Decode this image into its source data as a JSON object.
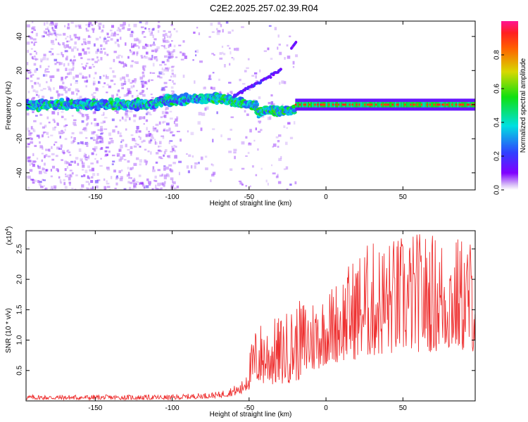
{
  "title": "C2E2.2025.257.02.39.R04",
  "chart_data": [
    {
      "type": "heatmap",
      "name": "spectrogram",
      "xlabel": "Height of straight line (km)",
      "ylabel": "Frequency (Hz)",
      "xlim": [
        -195,
        97
      ],
      "ylim": [
        -50,
        49
      ],
      "xticks": [
        -150,
        -100,
        -50,
        0,
        50
      ],
      "yticks": [
        -40,
        -20,
        0,
        20,
        40
      ],
      "colorbar": {
        "label": "Normalized spectral amplitude",
        "range": [
          0,
          1
        ],
        "ticks": [
          "0.0",
          "0.2",
          "0.4",
          "0.6",
          "0.8"
        ]
      },
      "colors": {
        "low": "#8000ff",
        "mid": "#00e0e0",
        "high": "#ff2020"
      },
      "bands": [
        {
          "x": [
            -195,
            -20
          ],
          "center_hz": [
            0,
            0,
            1,
            5,
            8,
            -5,
            -2
          ],
          "note": "noisy broadband"
        },
        {
          "x": [
            -20,
            97
          ],
          "center_hz": 0,
          "note": "steady carrier near 0 Hz"
        }
      ],
      "features": [
        {
          "name": "rising arc",
          "x": [
            -60,
            -30
          ],
          "hz": [
            5,
            20
          ]
        },
        {
          "name": "isolated streak",
          "x": [
            -22,
            -19
          ],
          "hz": [
            33,
            38
          ]
        }
      ]
    },
    {
      "type": "line",
      "name": "snr",
      "xlabel": "Height of straight line (km)",
      "ylabel": "SNR (10 * v/v)",
      "multiplier": "(x10",
      "multiplier_exp": "4",
      "xlim": [
        -195,
        97
      ],
      "ylim": [
        0,
        2.8
      ],
      "xticks": [
        -150,
        -100,
        -50,
        0,
        50
      ],
      "yticks": [
        "0.5",
        "1.0",
        "1.5",
        "2.0",
        "2.5"
      ],
      "color": "#ee3030",
      "series_envelope": [
        {
          "x": -195,
          "y_low": 0.02,
          "y_high": 0.1
        },
        {
          "x": -100,
          "y_low": 0.02,
          "y_high": 0.1
        },
        {
          "x": -70,
          "y_low": 0.05,
          "y_high": 0.15
        },
        {
          "x": -55,
          "y_low": 0.1,
          "y_high": 0.3
        },
        {
          "x": -45,
          "y_low": 0.25,
          "y_high": 1.3
        },
        {
          "x": -30,
          "y_low": 0.25,
          "y_high": 1.4
        },
        {
          "x": -15,
          "y_low": 0.35,
          "y_high": 1.7
        },
        {
          "x": 0,
          "y_low": 0.6,
          "y_high": 1.8
        },
        {
          "x": 25,
          "y_low": 0.7,
          "y_high": 2.6
        },
        {
          "x": 60,
          "y_low": 0.8,
          "y_high": 2.8
        },
        {
          "x": 97,
          "y_low": 0.8,
          "y_high": 2.7
        }
      ]
    }
  ]
}
